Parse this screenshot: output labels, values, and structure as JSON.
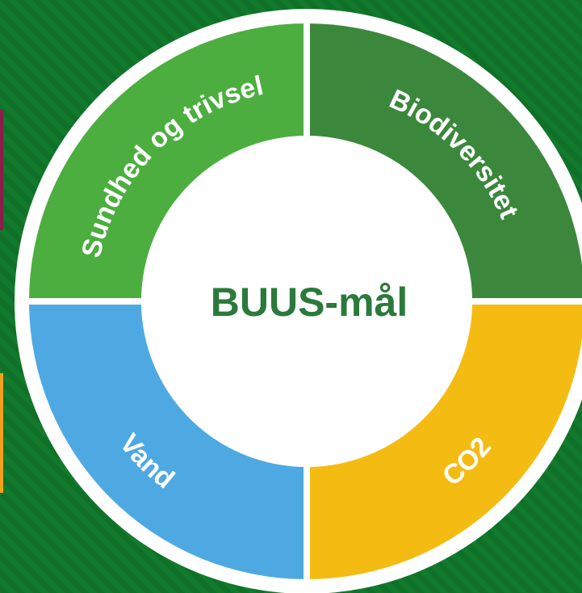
{
  "title": "BUUS-mål",
  "segments": [
    {
      "label": "Sundhed og trivsel"
    },
    {
      "label": "Biodiversitet"
    },
    {
      "label": "Vand"
    },
    {
      "label": "CO2"
    }
  ]
}
